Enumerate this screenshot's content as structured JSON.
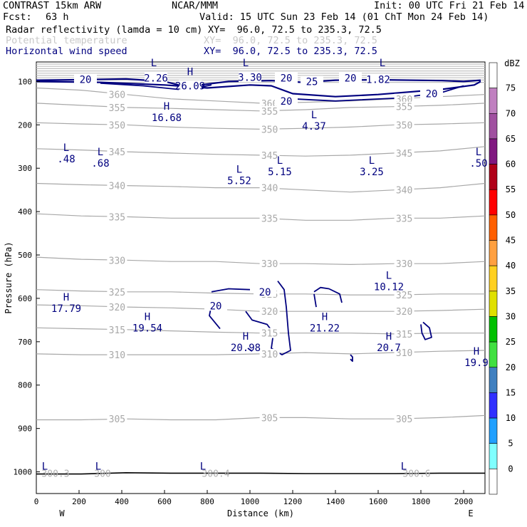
{
  "header": {
    "model": "CONTRAST 15km ARW",
    "org": "NCAR/MMM",
    "init": "Init: 00 UTC Fri 21 Feb 14",
    "fcst_label": "Fcst:",
    "fcst_value": "63 h",
    "valid": "Valid: 15 UTC Sun 23 Feb 14 (01 ChT Mon 24 Feb 14)",
    "fields": [
      {
        "name": "Radar reflectivity (lamda = 10 cm)",
        "xy": "XY=  96.0, 72.5 to 235.3, 72.5",
        "color": "#000000"
      },
      {
        "name": "Potential temperature",
        "xy": "XY=  96.0, 72.5 to 235.3, 72.5",
        "color": "#b8b8b8"
      },
      {
        "name": "Horizontal wind speed",
        "xy": "XY=  96.0, 72.5 to 235.3, 72.5",
        "color": "#00007f"
      }
    ]
  },
  "chart_data": {
    "type": "contour",
    "xlabel": "Distance (km)",
    "ylabel": "Pressure (hPa)",
    "x_ticks": [
      0,
      200,
      400,
      600,
      800,
      1000,
      1200,
      1400,
      1600,
      1800,
      2000
    ],
    "y_ticks": [
      100,
      200,
      300,
      400,
      500,
      600,
      700,
      800,
      900,
      1000
    ],
    "xlim": [
      0,
      2100
    ],
    "ylim_top": 55,
    "ylim_bottom": 1050,
    "x_left_label": "W",
    "x_right_label": "E",
    "colorbar": {
      "unit": "dBZ",
      "levels": [
        "75",
        "70",
        "65",
        "60",
        "55",
        "50",
        "45",
        "40",
        "35",
        "30",
        "25",
        "20",
        "15",
        "10",
        "5",
        "0"
      ],
      "colors": [
        "#ffffff",
        "#c080c0",
        "#a050a0",
        "#801880",
        "#b00018",
        "#ff0000",
        "#ff5f00",
        "#ffa040",
        "#ffd020",
        "#e0e000",
        "#00c000",
        "#40e040",
        "#4080c0",
        "#3030ff",
        "#20a0ff",
        "#80ffff",
        "#ffffff"
      ]
    },
    "theta_contours": [
      {
        "label": "360",
        "p": [
          115,
          120,
          130,
          140,
          145,
          150,
          148,
          145,
          140,
          135,
          130
        ]
      },
      {
        "label": "355",
        "p": [
          150,
          155,
          160,
          162,
          165,
          168,
          165,
          160,
          158,
          155,
          150
        ]
      },
      {
        "label": "350",
        "p": [
          195,
          198,
          200,
          205,
          208,
          210,
          208,
          205,
          200,
          198,
          195
        ]
      },
      {
        "label": "345",
        "p": [
          255,
          258,
          262,
          265,
          268,
          270,
          272,
          270,
          265,
          260,
          250
        ]
      },
      {
        "label": "340",
        "p": [
          335,
          338,
          340,
          342,
          345,
          345,
          350,
          355,
          350,
          345,
          335
        ]
      },
      {
        "label": "335",
        "p": [
          405,
          410,
          412,
          415,
          415,
          415,
          420,
          420,
          415,
          415,
          410
        ]
      },
      {
        "label": "330",
        "p": [
          505,
          510,
          512,
          515,
          515,
          520,
          520,
          522,
          520,
          520,
          515
        ]
      },
      {
        "label": "325",
        "p": [
          580,
          583,
          585,
          585,
          588,
          590,
          590,
          592,
          592,
          590,
          590
        ]
      },
      {
        "label": "320",
        "p": [
          615,
          617,
          620,
          622,
          625,
          630,
          630,
          630,
          630,
          628,
          625
        ]
      },
      {
        "label": "315",
        "p": [
          668,
          670,
          672,
          675,
          678,
          680,
          680,
          680,
          682,
          680,
          680
        ]
      },
      {
        "label": "310",
        "p": [
          728,
          730,
          730,
          730,
          730,
          728,
          725,
          728,
          725,
          722,
          720
        ]
      },
      {
        "label": "305",
        "p": [
          880,
          880,
          878,
          880,
          880,
          875,
          875,
          878,
          878,
          875,
          870
        ]
      },
      {
        "label": "300",
        "p": [
          1005,
          1005,
          1002,
          1003,
          1003,
          1003,
          1004,
          1004,
          1004,
          1003,
          1003
        ]
      }
    ],
    "wind_labels": [
      {
        "text": "20",
        "x": 230,
        "p": 95
      },
      {
        "text": "2.26",
        "x": 560,
        "p": 92
      },
      {
        "text": "26.09",
        "x": 720,
        "p": 110
      },
      {
        "text": "3.30",
        "x": 1000,
        "p": 90
      },
      {
        "text": "20",
        "x": 1170,
        "p": 92
      },
      {
        "text": "25",
        "x": 1290,
        "p": 100
      },
      {
        "text": "20",
        "x": 1470,
        "p": 92
      },
      {
        "text": "1.82",
        "x": 1600,
        "p": 95
      },
      {
        "text": "20",
        "x": 1850,
        "p": 128
      },
      {
        "text": "20",
        "x": 1170,
        "p": 145
      },
      {
        "text": "20",
        "x": 1070,
        "p": 585
      },
      {
        "text": "20",
        "x": 840,
        "p": 617
      }
    ],
    "extrema": [
      {
        "type": "L",
        "value": "",
        "x": 550,
        "p": 65
      },
      {
        "type": "L",
        "value": "",
        "x": 980,
        "p": 65
      },
      {
        "type": "L",
        "value": "",
        "x": 1620,
        "p": 65
      },
      {
        "type": "H",
        "value": "",
        "x": 720,
        "p": 85
      },
      {
        "type": "H",
        "value": "16.68",
        "x": 610,
        "p": 165
      },
      {
        "type": "L",
        "value": "4.37",
        "x": 1300,
        "p": 185
      },
      {
        "type": "L",
        "value": ".48",
        "x": 140,
        "p": 260
      },
      {
        "type": "L",
        "value": ".68",
        "x": 300,
        "p": 270
      },
      {
        "type": "L",
        "value": "5.15",
        "x": 1140,
        "p": 290
      },
      {
        "type": "L",
        "value": "3.25",
        "x": 1570,
        "p": 290
      },
      {
        "type": "L",
        "value": "5.52",
        "x": 950,
        "p": 310
      },
      {
        "type": "L",
        "value": ".50",
        "x": 2070,
        "p": 270
      },
      {
        "type": "L",
        "value": "10.12",
        "x": 1650,
        "p": 555
      },
      {
        "type": "H",
        "value": "17.79",
        "x": 140,
        "p": 605
      },
      {
        "type": "H",
        "value": "19.54",
        "x": 520,
        "p": 650
      },
      {
        "type": "H",
        "value": "21.22",
        "x": 1350,
        "p": 650
      },
      {
        "type": "H",
        "value": "20.98",
        "x": 980,
        "p": 695
      },
      {
        "type": "H",
        "value": "20.7",
        "x": 1650,
        "p": 695
      },
      {
        "type": "H",
        "value": "19.9",
        "x": 2060,
        "p": 730
      },
      {
        "type": "L",
        "value": "",
        "x": 40,
        "p": 995
      },
      {
        "type": "L",
        "value": "",
        "x": 290,
        "p": 995
      },
      {
        "type": "L",
        "value": "",
        "x": 780,
        "p": 995
      },
      {
        "type": "L",
        "value": "",
        "x": 1720,
        "p": 995
      }
    ],
    "bottom_theta_values": [
      {
        "text": "300.3",
        "x": 30
      },
      {
        "text": "300",
        "x": 250
      },
      {
        "text": "300.4",
        "x": 780
      },
      {
        "text": "300.6",
        "x": 1720
      }
    ]
  }
}
